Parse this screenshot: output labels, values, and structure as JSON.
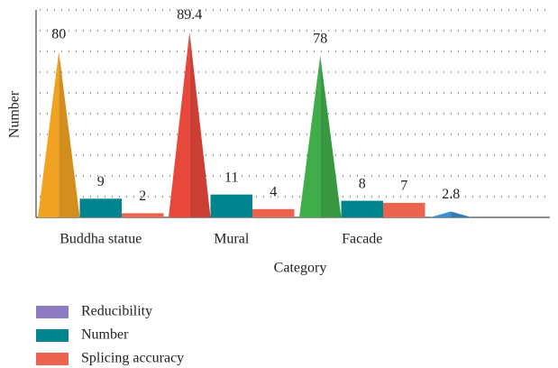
{
  "chart_data": {
    "type": "bar",
    "x_label": "Category",
    "y_label": "Number",
    "categories": [
      "Buddha statue",
      "Mural",
      "Facade",
      null
    ],
    "series": [
      {
        "name": "Reducibility",
        "color": "#8e7cc3",
        "colors": [
          "#f2a221",
          "#e8483c",
          "#3fae4a",
          "#3a8ed0"
        ],
        "values": [
          80,
          89.4,
          78,
          2.8
        ]
      },
      {
        "name": "Number",
        "color": "#00848e",
        "values": [
          9,
          11,
          8,
          null
        ]
      },
      {
        "name": "Splicing accuracy",
        "color": "#ec6450",
        "values": [
          2,
          4,
          7,
          null
        ]
      }
    ],
    "ylim": [
      0,
      100
    ],
    "yticks": [
      0,
      10,
      20,
      30,
      40,
      50,
      60,
      70,
      80,
      90,
      100
    ],
    "grid": true
  }
}
